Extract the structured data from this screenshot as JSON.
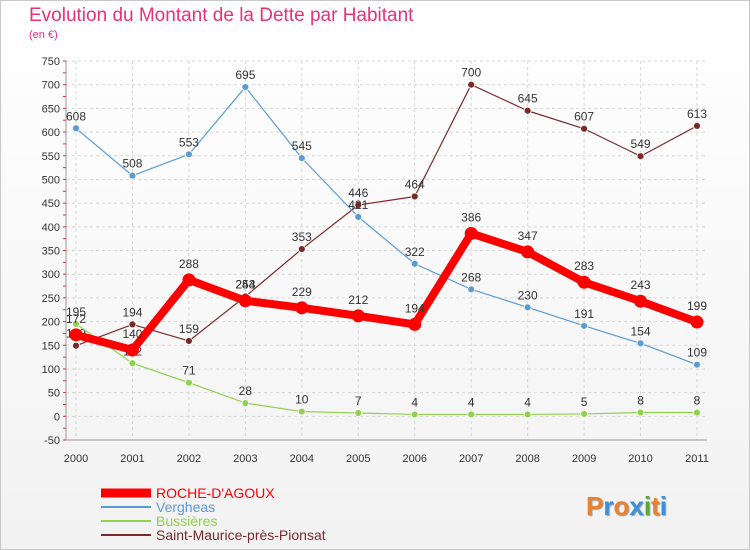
{
  "title": "Evolution du Montant de la Dette par Habitant",
  "subtitle": "(en €)",
  "logo": {
    "text": "Proxiti",
    "colors": [
      "#e8822f",
      "#3c8fd9",
      "#e8822f",
      "#3c8fd9",
      "#5aa83c",
      "#e8822f",
      "#3c8fd9"
    ]
  },
  "chart_data": {
    "type": "line",
    "title": "Evolution du Montant de la Dette par Habitant",
    "ylabel": "(en €)",
    "x": [
      "2000",
      "2001",
      "2002",
      "2003",
      "2004",
      "2005",
      "2006",
      "2007",
      "2008",
      "2009",
      "2010",
      "2011"
    ],
    "ylim": [
      -50,
      750
    ],
    "yticks": [
      -50,
      0,
      50,
      100,
      150,
      200,
      250,
      300,
      350,
      400,
      450,
      500,
      550,
      600,
      650,
      700,
      750
    ],
    "grid": true,
    "legend_position": "bottom-left",
    "series": [
      {
        "name": "ROCHE-D'AGOUX",
        "color": "#ff0000",
        "values": [
          172,
          140,
          288,
          244,
          229,
          212,
          194,
          386,
          347,
          283,
          243,
          199
        ]
      },
      {
        "name": "Vergheas",
        "color": "#5b9bd5",
        "values": [
          608,
          508,
          553,
          695,
          545,
          421,
          322,
          268,
          230,
          191,
          154,
          109
        ]
      },
      {
        "name": "Bussières",
        "color": "#92d050",
        "values": [
          195,
          112,
          71,
          28,
          10,
          7,
          4,
          4,
          4,
          5,
          8,
          8
        ]
      },
      {
        "name": "Saint-Maurice-près-Pionsat",
        "color": "#7b2a2a",
        "values": [
          149,
          194,
          159,
          253,
          353,
          446,
          464,
          700,
          645,
          607,
          549,
          613
        ]
      }
    ]
  }
}
